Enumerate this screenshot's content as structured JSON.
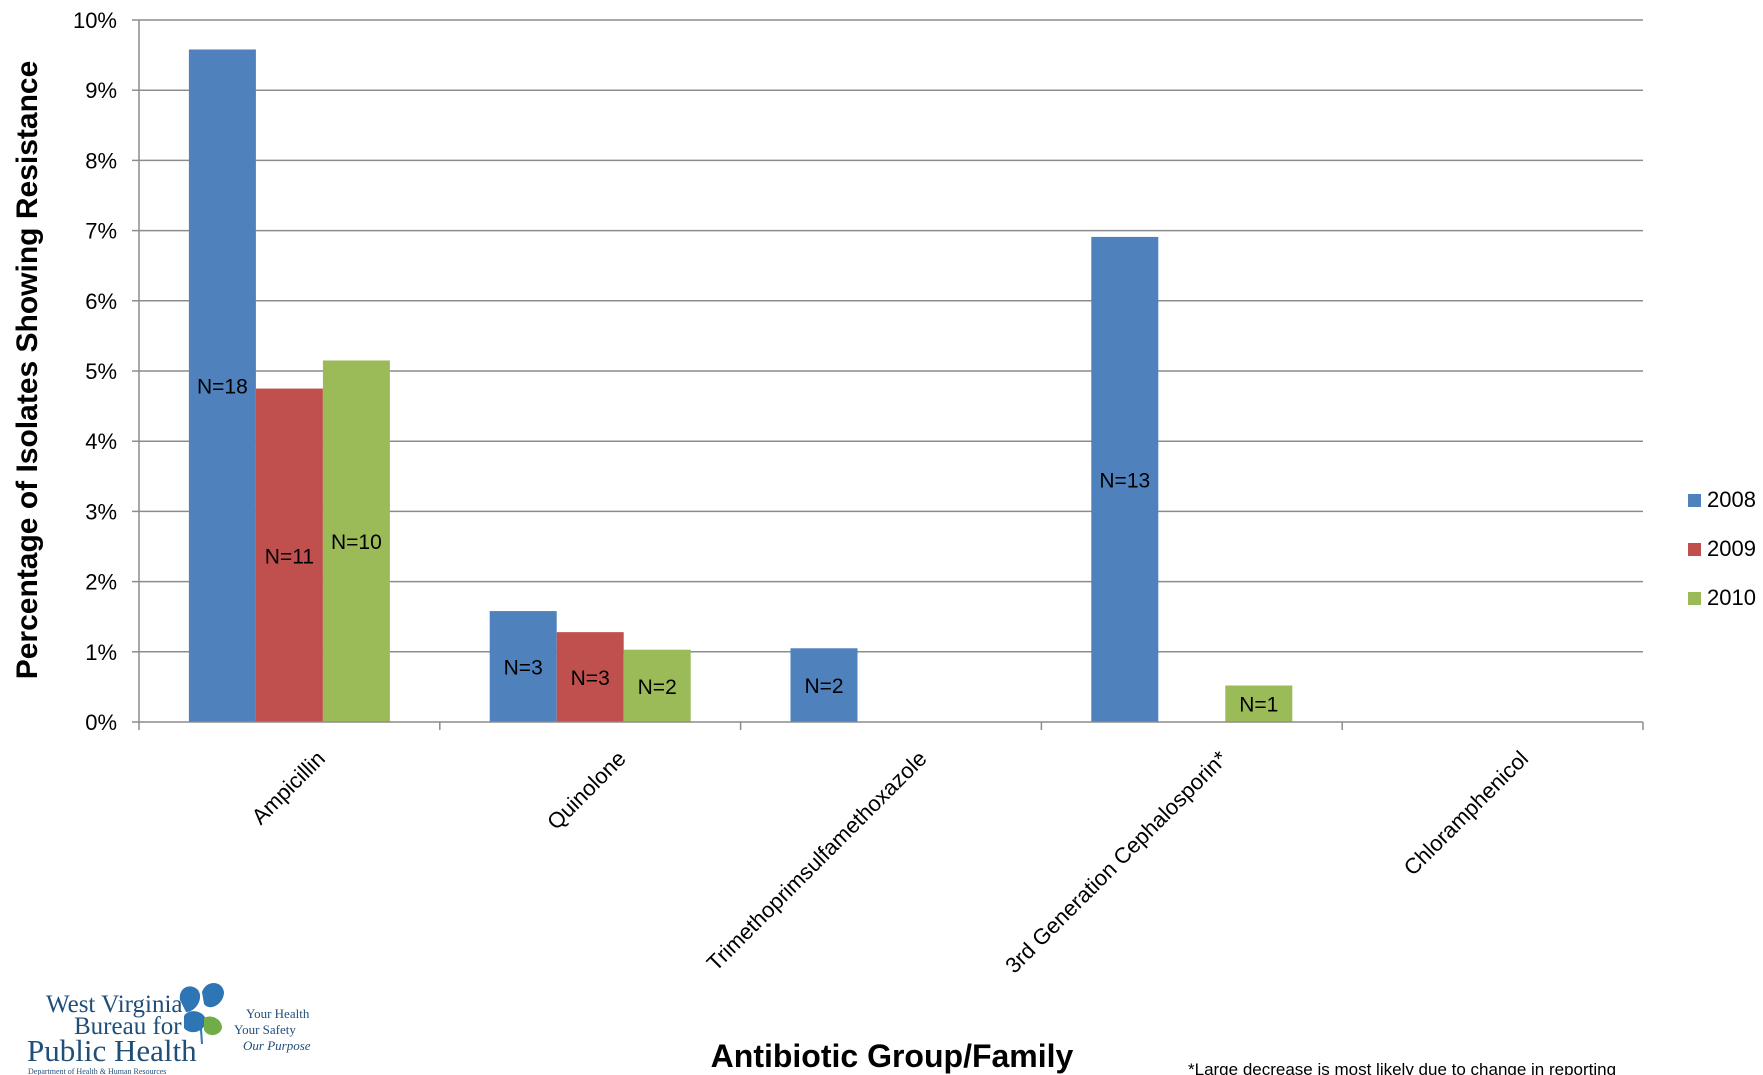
{
  "chart_data": {
    "type": "bar",
    "title": "",
    "xlabel": "Antibiotic Group/Family",
    "ylabel": "Percentage of Isolates Showing Resistance",
    "ylim": [
      0,
      10
    ],
    "y_ticks": [
      "0%",
      "1%",
      "2%",
      "3%",
      "4%",
      "5%",
      "6%",
      "7%",
      "8%",
      "9%",
      "10%"
    ],
    "grid": true,
    "legend_position": "right",
    "categories": [
      "Ampicillin",
      "Quinolone",
      "Trimethoprimsulfamethoxazole",
      "3rd Generation Cephalosporin*",
      "Chloramphenicol"
    ],
    "series": [
      {
        "name": "2008",
        "color": "#4f81bd",
        "values": [
          9.58,
          1.58,
          1.05,
          6.91,
          0
        ],
        "labels": [
          "N=18",
          "N=3",
          "N=2",
          "N=13",
          ""
        ]
      },
      {
        "name": "2009",
        "color": "#c0504d",
        "values": [
          4.75,
          1.28,
          0,
          0,
          0
        ],
        "labels": [
          "N=11",
          "N=3",
          "",
          "",
          ""
        ]
      },
      {
        "name": "2010",
        "color": "#9bbb59",
        "values": [
          5.15,
          1.03,
          0,
          0.52,
          0
        ],
        "labels": [
          "N=10",
          "N=2",
          "",
          "N=1",
          ""
        ]
      }
    ],
    "footnote": "*Large decrease is most likely due to change in reporting"
  },
  "logo": {
    "line1": "West Virginia",
    "line2": "Bureau for",
    "line3": "Public Health",
    "line4": "Department of Health & Human Resources",
    "tag1": "Your Health",
    "tag2": "Your Safety",
    "tag3": "Our Purpose"
  }
}
